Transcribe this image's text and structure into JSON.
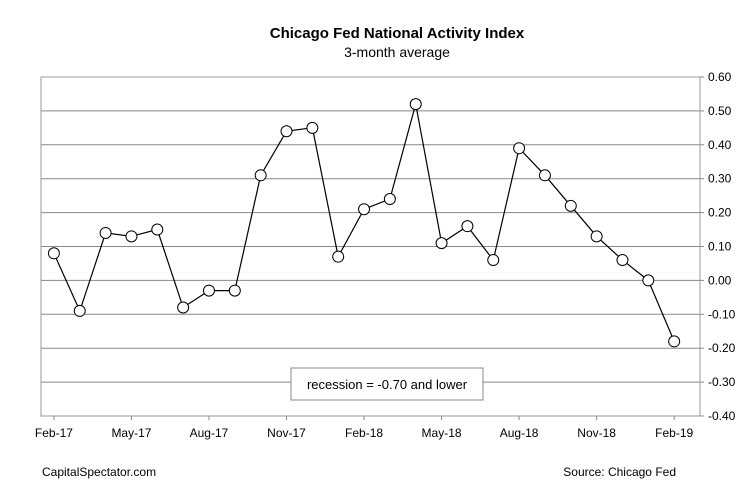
{
  "footer": {
    "left": "CapitalSpectator.com",
    "right": "Source: Chicago Fed"
  },
  "annotation": "recession = -0.70 and lower",
  "chart_data": {
    "type": "line",
    "title": "Chicago Fed National Activity Index",
    "subtitle": "3-month average",
    "xlabel": "",
    "ylabel": "",
    "x": [
      "Feb-17",
      "Mar-17",
      "Apr-17",
      "May-17",
      "Jun-17",
      "Jul-17",
      "Aug-17",
      "Sep-17",
      "Oct-17",
      "Nov-17",
      "Dec-17",
      "Jan-18",
      "Feb-18",
      "Mar-18",
      "Apr-18",
      "May-18",
      "Jun-18",
      "Jul-18",
      "Aug-18",
      "Sep-18",
      "Oct-18",
      "Nov-18",
      "Dec-18",
      "Jan-19",
      "Feb-19"
    ],
    "x_tick_labels": [
      "Feb-17",
      "May-17",
      "Aug-17",
      "Nov-17",
      "Feb-18",
      "May-18",
      "Aug-18",
      "Nov-18",
      "Feb-19"
    ],
    "series": [
      {
        "values": [
          0.08,
          -0.09,
          0.14,
          0.13,
          0.15,
          -0.08,
          -0.03,
          -0.03,
          0.31,
          0.44,
          0.45,
          0.07,
          0.21,
          0.24,
          0.52,
          0.11,
          0.16,
          0.06,
          0.39,
          0.31,
          0.22,
          0.13,
          0.06,
          0.0,
          -0.18
        ]
      }
    ],
    "ylim": [
      -0.4,
      0.6
    ],
    "y_ticks": [
      "-0.40",
      "-0.30",
      "-0.20",
      "-0.10",
      "0.00",
      "0.10",
      "0.20",
      "0.30",
      "0.40",
      "0.50",
      "0.60"
    ],
    "y_tick_values": [
      -0.4,
      -0.3,
      -0.2,
      -0.1,
      0.0,
      0.1,
      0.2,
      0.3,
      0.4,
      0.5,
      0.6
    ],
    "y_axis_side": "right",
    "grid": true,
    "legend": "none",
    "colors": {
      "line": "#000000",
      "marker_fill": "#ffffff",
      "grid": "#888888",
      "frame": "#999999"
    }
  }
}
